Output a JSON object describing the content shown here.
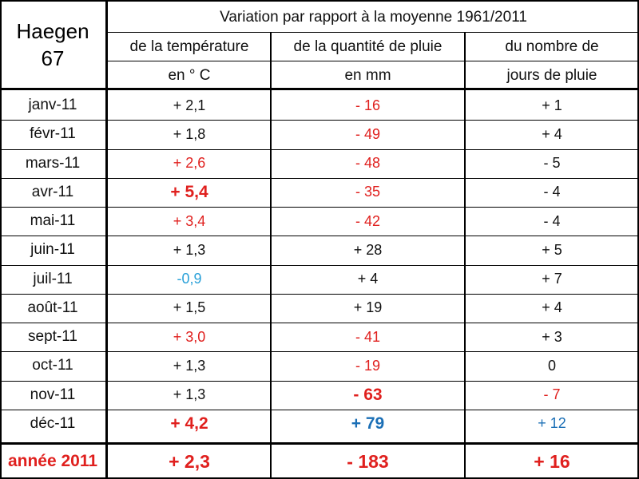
{
  "station": {
    "name": "Haegen",
    "code": "67"
  },
  "header": {
    "title": "Variation par rapport à la moyenne 1961/2011",
    "columns": [
      {
        "line1": "de la température",
        "line2": "en ° C"
      },
      {
        "line1": "de la quantité de pluie",
        "line2": "en mm"
      },
      {
        "line1": "du nombre de",
        "line2": "jours de pluie"
      }
    ]
  },
  "rows": [
    {
      "month": "janv-11",
      "temp": "+ 2,1",
      "rain": "- 16",
      "days": "+ 1"
    },
    {
      "month": "févr-11",
      "temp": "+ 1,8",
      "rain": "- 49",
      "days": "+ 4"
    },
    {
      "month": "mars-11",
      "temp": "+ 2,6",
      "rain": "- 48",
      "days": "- 5"
    },
    {
      "month": "avr-11",
      "temp": "+ 5,4",
      "rain": "- 35",
      "days": "- 4"
    },
    {
      "month": "mai-11",
      "temp": "+ 3,4",
      "rain": "- 42",
      "days": "- 4"
    },
    {
      "month": "juin-11",
      "temp": "+ 1,3",
      "rain": "+ 28",
      "days": "+ 5"
    },
    {
      "month": "juil-11",
      "temp": "-0,9",
      "rain": "+ 4",
      "days": "+ 7"
    },
    {
      "month": "août-11",
      "temp": "+ 1,5",
      "rain": "+ 19",
      "days": "+ 4"
    },
    {
      "month": "sept-11",
      "temp": "+ 3,0",
      "rain": "- 41",
      "days": "+ 3"
    },
    {
      "month": "oct-11",
      "temp": "+ 1,3",
      "rain": "- 19",
      "days": "0"
    },
    {
      "month": "nov-11",
      "temp": "+ 1,3",
      "rain": "- 63",
      "days": "- 7"
    },
    {
      "month": "déc-11",
      "temp": "+ 4,2",
      "rain": "+ 79",
      "days": "+ 12"
    }
  ],
  "total": {
    "label": "année 2011",
    "temp": "+ 2,3",
    "rain": "- 183",
    "days": "+ 16"
  },
  "colors": {
    "red": "#e0201e",
    "blue": "#1b6fb6",
    "cyan": "#29a0d8",
    "black": "#111111"
  }
}
